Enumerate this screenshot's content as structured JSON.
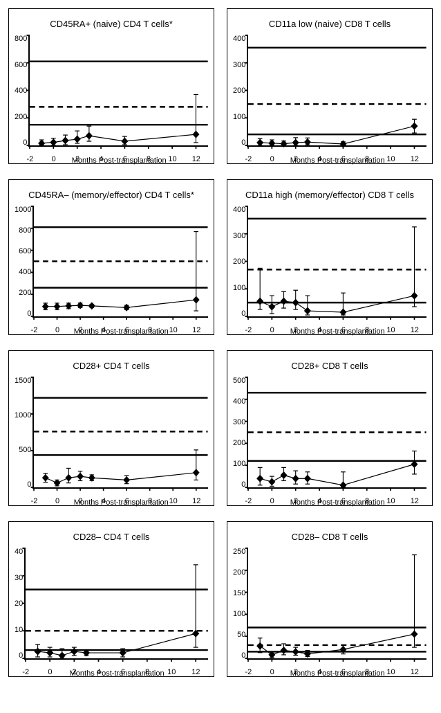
{
  "xlabel": "Months Post-transplantation",
  "x_ticks": [
    -2,
    0,
    2,
    4,
    6,
    8,
    10,
    12
  ],
  "x_domain": [
    -2,
    13
  ],
  "marker_color": "#000000",
  "line_color": "#000000",
  "ref_color": "#000000",
  "panels": [
    {
      "id": "p0",
      "title": "CD45RA+ (naive) CD4 T cells*",
      "ylim": [
        0,
        800
      ],
      "ytick_step": 200,
      "ref_lines": {
        "upper": 610,
        "mid": 280,
        "mid_dash": true,
        "lower": 150
      },
      "points": [
        {
          "x": -1,
          "y": 15,
          "eu": 25,
          "el": 15
        },
        {
          "x": 0,
          "y": 22,
          "eu": 30,
          "el": 22
        },
        {
          "x": 1,
          "y": 35,
          "eu": 40,
          "el": 30
        },
        {
          "x": 2,
          "y": 45,
          "eu": 60,
          "el": 30
        },
        {
          "x": 3,
          "y": 70,
          "eu": 70,
          "el": 40
        },
        {
          "x": 6,
          "y": 30,
          "eu": 35,
          "el": 25
        },
        {
          "x": 12,
          "y": 80,
          "eu": 290,
          "el": 60
        }
      ]
    },
    {
      "id": "p1",
      "title": "CD11a low (naive) CD8 T cells",
      "ylim": [
        0,
        400
      ],
      "ytick_step": 100,
      "ref_lines": {
        "upper": 355,
        "mid": 150,
        "mid_dash": true,
        "lower": 40
      },
      "points": [
        {
          "x": -1,
          "y": 10,
          "eu": 15,
          "el": 10
        },
        {
          "x": 0,
          "y": 8,
          "eu": 12,
          "el": 8
        },
        {
          "x": 1,
          "y": 6,
          "eu": 10,
          "el": 6
        },
        {
          "x": 2,
          "y": 10,
          "eu": 18,
          "el": 10
        },
        {
          "x": 3,
          "y": 12,
          "eu": 15,
          "el": 10
        },
        {
          "x": 6,
          "y": 5,
          "eu": 8,
          "el": 5
        },
        {
          "x": 12,
          "y": 70,
          "eu": 25,
          "el": 25
        }
      ]
    },
    {
      "id": "p2",
      "title": "CD45RA– (memory/effector) CD4 T cells*",
      "ylim": [
        0,
        1000
      ],
      "ytick_step": 200,
      "ref_lines": {
        "upper": 810,
        "mid": 500,
        "mid_dash": true,
        "lower": 260
      },
      "points": [
        {
          "x": -1,
          "y": 90,
          "eu": 30,
          "el": 30
        },
        {
          "x": 0,
          "y": 90,
          "eu": 30,
          "el": 30
        },
        {
          "x": 1,
          "y": 95,
          "eu": 25,
          "el": 25
        },
        {
          "x": 2,
          "y": 100,
          "eu": 20,
          "el": 20
        },
        {
          "x": 3,
          "y": 95,
          "eu": 15,
          "el": 15
        },
        {
          "x": 6,
          "y": 80,
          "eu": 20,
          "el": 20
        },
        {
          "x": 12,
          "y": 150,
          "eu": 620,
          "el": 100
        }
      ]
    },
    {
      "id": "p3",
      "title": "CD11a high (memory/effector) CD8 T cells",
      "ylim": [
        0,
        400
      ],
      "ytick_step": 100,
      "ref_lines": {
        "upper": 355,
        "mid": 170,
        "mid_dash": true,
        "lower": 50
      },
      "points": [
        {
          "x": -1,
          "y": 55,
          "eu": 120,
          "el": 30
        },
        {
          "x": 0,
          "y": 35,
          "eu": 40,
          "el": 25
        },
        {
          "x": 1,
          "y": 55,
          "eu": 35,
          "el": 25
        },
        {
          "x": 2,
          "y": 50,
          "eu": 45,
          "el": 25
        },
        {
          "x": 3,
          "y": 20,
          "eu": 55,
          "el": 15
        },
        {
          "x": 6,
          "y": 15,
          "eu": 70,
          "el": 10
        },
        {
          "x": 12,
          "y": 75,
          "eu": 250,
          "el": 40
        }
      ]
    },
    {
      "id": "p4",
      "title": "CD28+ CD4 T cells",
      "ylim": [
        0,
        1500
      ],
      "ytick_step": 500,
      "ref_lines": {
        "upper": 1220,
        "mid": 760,
        "mid_dash": true,
        "lower": 440
      },
      "points": [
        {
          "x": -1,
          "y": 130,
          "eu": 60,
          "el": 60
        },
        {
          "x": 0,
          "y": 60,
          "eu": 40,
          "el": 40
        },
        {
          "x": 1,
          "y": 130,
          "eu": 130,
          "el": 70
        },
        {
          "x": 2,
          "y": 150,
          "eu": 70,
          "el": 60
        },
        {
          "x": 3,
          "y": 130,
          "eu": 40,
          "el": 40
        },
        {
          "x": 6,
          "y": 100,
          "eu": 60,
          "el": 50
        },
        {
          "x": 12,
          "y": 200,
          "eu": 310,
          "el": 100
        }
      ]
    },
    {
      "id": "p5",
      "title": "CD28+ CD8 T cells",
      "ylim": [
        0,
        500
      ],
      "ytick_step": 100,
      "ref_lines": {
        "upper": 430,
        "mid": 250,
        "mid_dash": true,
        "lower": 120
      },
      "points": [
        {
          "x": -1,
          "y": 40,
          "eu": 50,
          "el": 30
        },
        {
          "x": 0,
          "y": 25,
          "eu": 25,
          "el": 20
        },
        {
          "x": 1,
          "y": 55,
          "eu": 35,
          "el": 25
        },
        {
          "x": 2,
          "y": 40,
          "eu": 35,
          "el": 25
        },
        {
          "x": 3,
          "y": 40,
          "eu": 30,
          "el": 25
        },
        {
          "x": 6,
          "y": 10,
          "eu": 60,
          "el": 8
        },
        {
          "x": 12,
          "y": 105,
          "eu": 60,
          "el": 45
        }
      ]
    },
    {
      "id": "p6",
      "title": "CD28– CD4 T cells",
      "ylim": [
        0,
        40
      ],
      "ytick_step": 10,
      "ref_lines": {
        "upper": 25,
        "mid": 10,
        "mid_dash": true,
        "lower": 3
      },
      "points": [
        {
          "x": -1,
          "y": 2.5,
          "eu": 2.5,
          "el": 2
        },
        {
          "x": 0,
          "y": 2,
          "eu": 2,
          "el": 1.5
        },
        {
          "x": 1,
          "y": 1,
          "eu": 2.5,
          "el": 1
        },
        {
          "x": 2,
          "y": 2.5,
          "eu": 1.5,
          "el": 1.5
        },
        {
          "x": 3,
          "y": 2,
          "eu": 1,
          "el": 1
        },
        {
          "x": 6,
          "y": 2,
          "eu": 1.5,
          "el": 1.5
        },
        {
          "x": 12,
          "y": 9,
          "eu": 25,
          "el": 5
        }
      ]
    },
    {
      "id": "p7",
      "title": "CD28– CD8 T cells",
      "ylim": [
        0,
        250
      ],
      "ytick_step": 50,
      "ref_lines": {
        "upper": 70,
        "mid": 30,
        "mid_dash": true,
        "lower": 15
      },
      "points": [
        {
          "x": -1,
          "y": 28,
          "eu": 18,
          "el": 15
        },
        {
          "x": 0,
          "y": 8,
          "eu": 7,
          "el": 6
        },
        {
          "x": 1,
          "y": 18,
          "eu": 15,
          "el": 10
        },
        {
          "x": 2,
          "y": 15,
          "eu": 10,
          "el": 8
        },
        {
          "x": 3,
          "y": 10,
          "eu": 8,
          "el": 6
        },
        {
          "x": 6,
          "y": 20,
          "eu": 10,
          "el": 10
        },
        {
          "x": 12,
          "y": 55,
          "eu": 180,
          "el": 30
        }
      ]
    }
  ]
}
